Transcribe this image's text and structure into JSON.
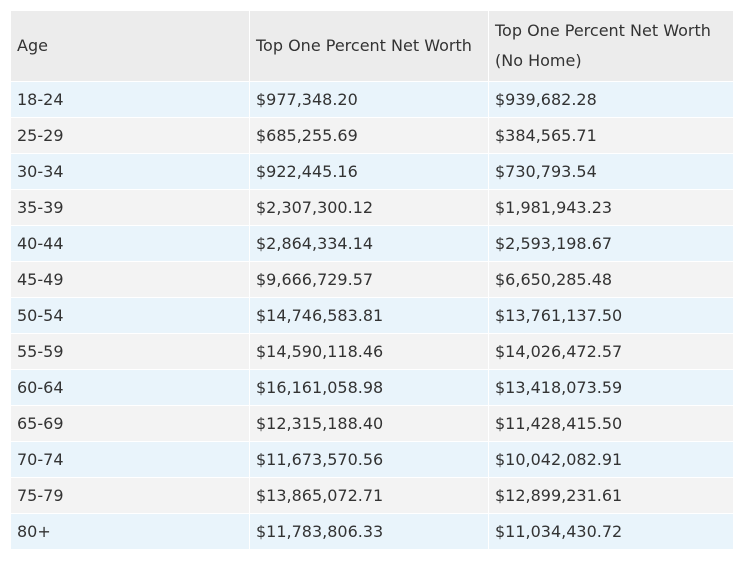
{
  "table": {
    "headers": [
      "Age",
      "Top One Percent Net Worth",
      "Top One Percent Net Worth (No Home)"
    ],
    "rows": [
      [
        "18-24",
        "$977,348.20",
        "$939,682.28"
      ],
      [
        "25-29",
        "$685,255.69",
        "$384,565.71"
      ],
      [
        "30-34",
        "$922,445.16",
        "$730,793.54"
      ],
      [
        "35-39",
        "$2,307,300.12",
        "$1,981,943.23"
      ],
      [
        "40-44",
        "$2,864,334.14",
        "$2,593,198.67"
      ],
      [
        "45-49",
        "$9,666,729.57",
        "$6,650,285.48"
      ],
      [
        "50-54",
        "$14,746,583.81",
        "$13,761,137.50"
      ],
      [
        "55-59",
        "$14,590,118.46",
        "$14,026,472.57"
      ],
      [
        "60-64",
        "$16,161,058.98",
        "$13,418,073.59"
      ],
      [
        "65-69",
        "$12,315,188.40",
        "$11,428,415.50"
      ],
      [
        "70-74",
        "$11,673,570.56",
        "$10,042,082.91"
      ],
      [
        "75-79",
        "$13,865,072.71",
        "$12,899,231.61"
      ],
      [
        "80+",
        "$11,783,806.33",
        "$11,034,430.72"
      ]
    ]
  }
}
